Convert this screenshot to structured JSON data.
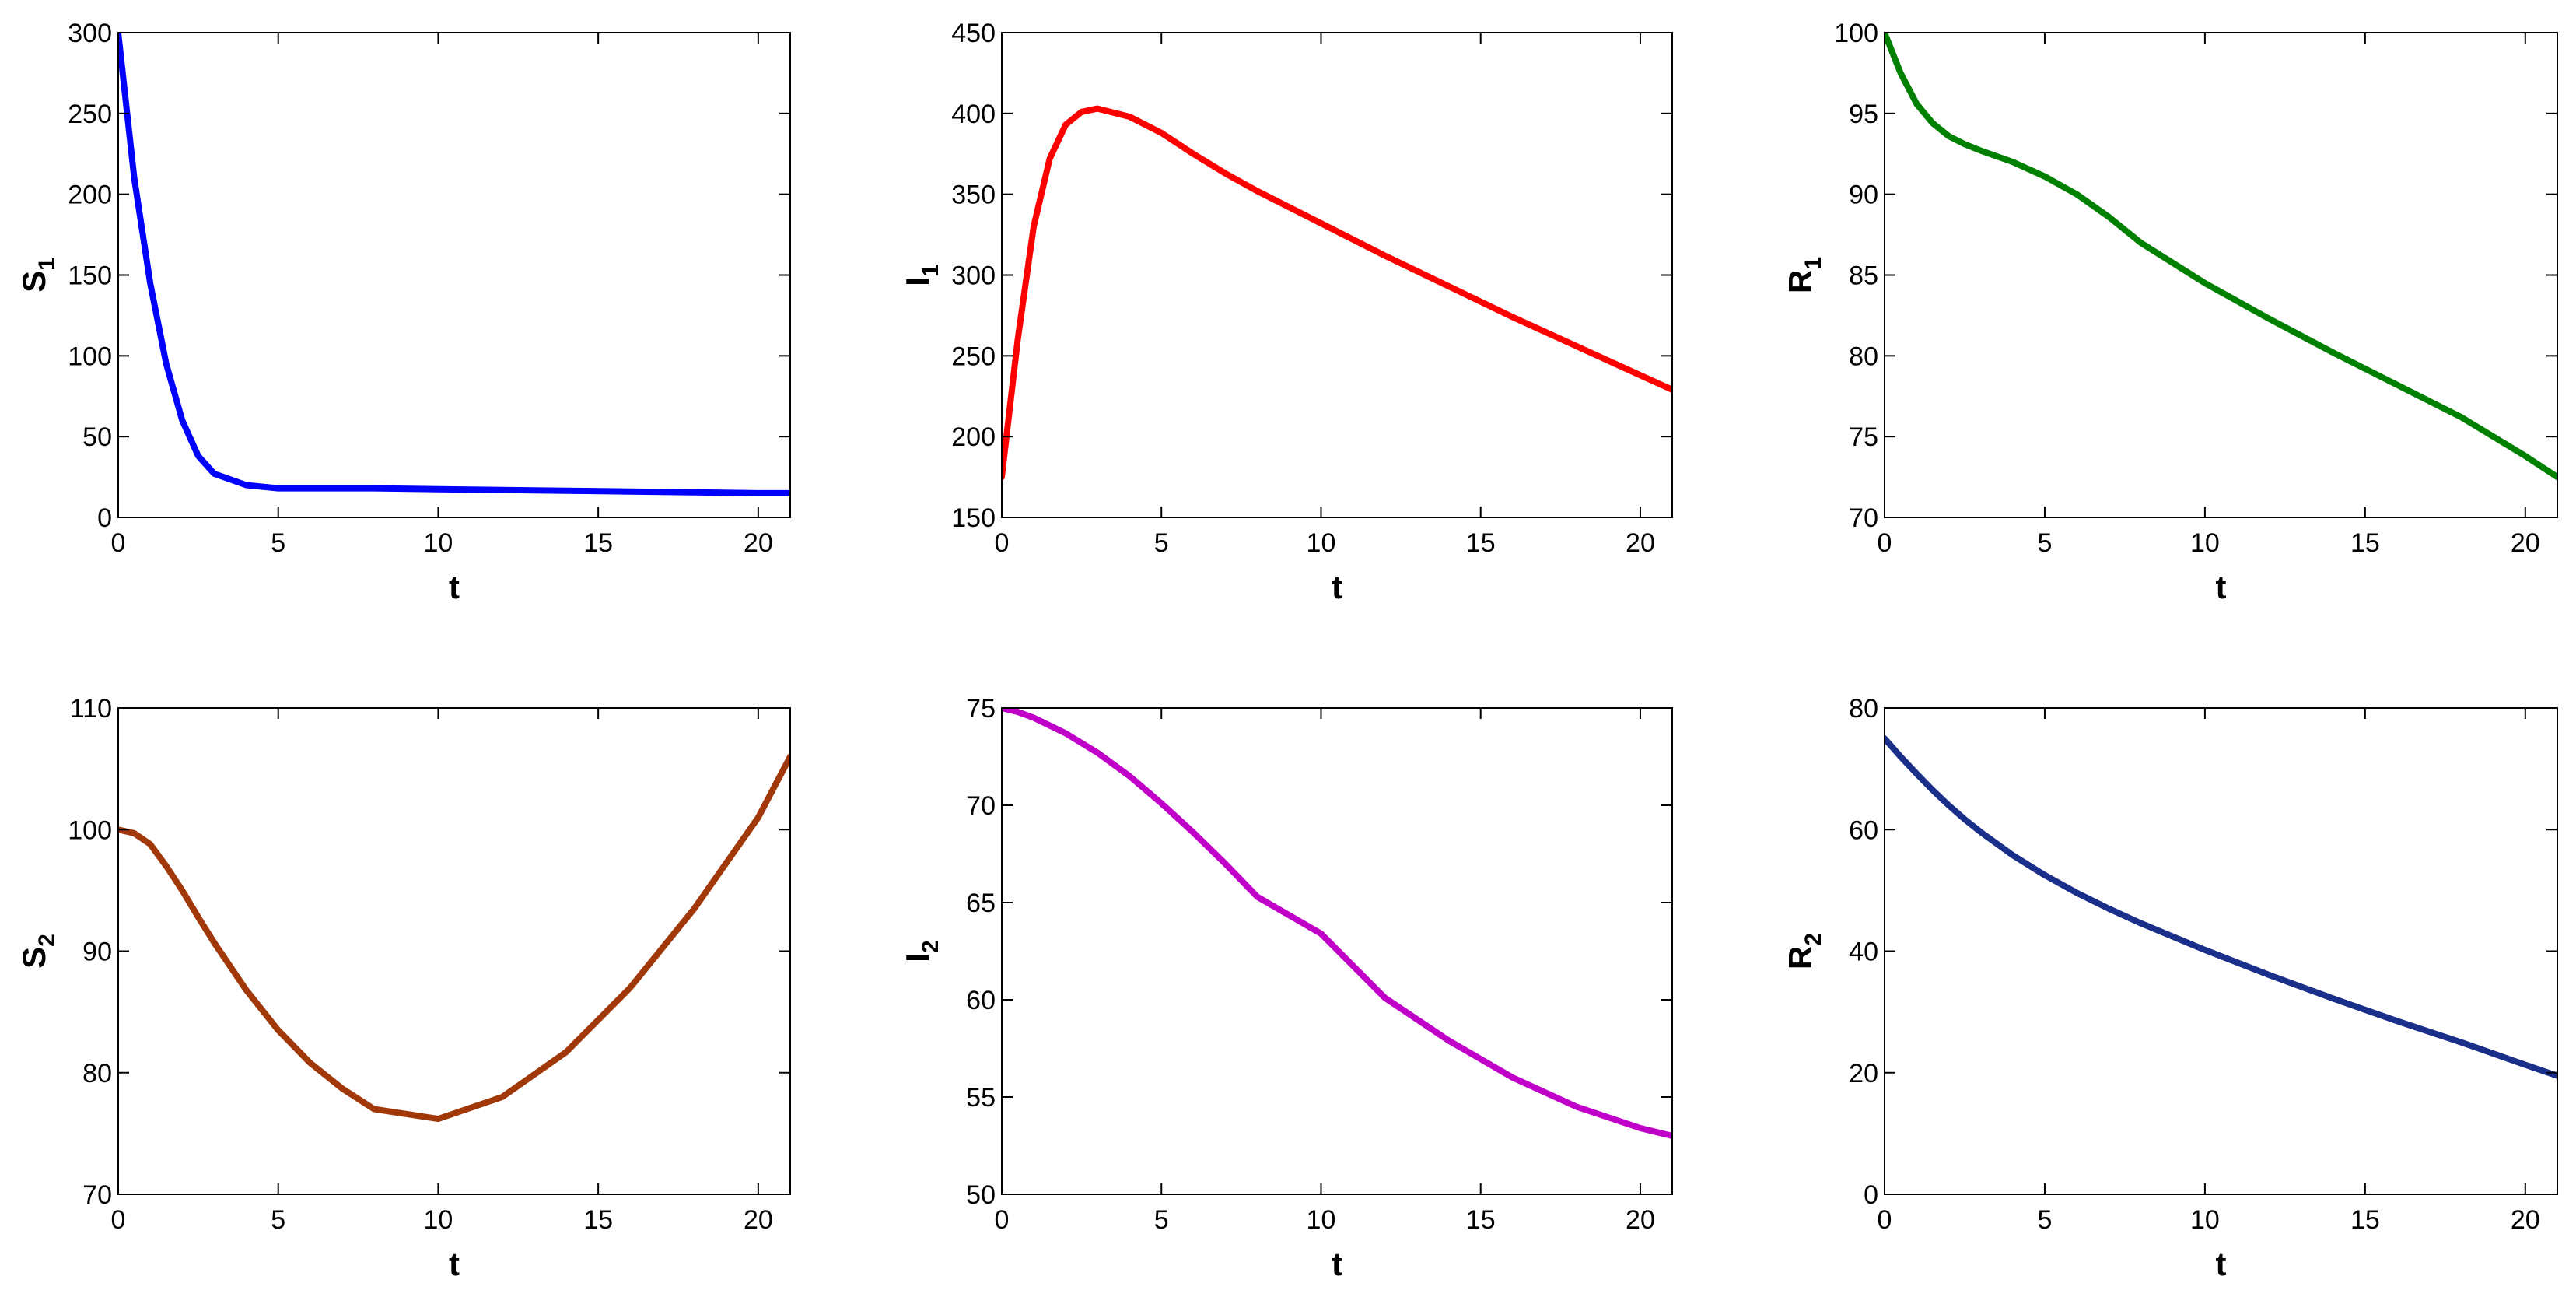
{
  "chart_data": [
    {
      "type": "line",
      "xlabel": "t",
      "ylabel": "S",
      "ylabel_subscript": "1",
      "x": [
        0,
        0.5,
        1,
        1.5,
        2,
        2.5,
        3,
        4,
        5,
        6,
        7,
        8,
        10,
        12,
        14,
        16,
        18,
        20,
        21
      ],
      "series": [
        {
          "color": "#0000ff",
          "values": [
            300,
            210,
            145,
            95,
            60,
            38,
            27,
            20,
            18,
            18,
            18,
            18,
            17.5,
            17,
            16.5,
            16,
            15.5,
            15,
            15
          ]
        }
      ],
      "xlim": [
        0,
        21
      ],
      "xticks": [
        0,
        5,
        10,
        15,
        20
      ],
      "ylim": [
        0,
        300
      ],
      "yticks": [
        0,
        50,
        100,
        150,
        200,
        250,
        300
      ]
    },
    {
      "type": "line",
      "xlabel": "t",
      "ylabel": "I",
      "ylabel_subscript": "1",
      "x": [
        0,
        0.5,
        1,
        1.5,
        2,
        2.5,
        3,
        4,
        5,
        6,
        7,
        8,
        10,
        12,
        14,
        16,
        18,
        20,
        21
      ],
      "series": [
        {
          "color": "#ff0000",
          "values": [
            175,
            260,
            330,
            372,
            393,
            401,
            403,
            398,
            388,
            375,
            363,
            352,
            332,
            312,
            293,
            274,
            256,
            238,
            229
          ]
        }
      ],
      "xlim": [
        0,
        21
      ],
      "xticks": [
        0,
        5,
        10,
        15,
        20
      ],
      "ylim": [
        150,
        450
      ],
      "yticks": [
        150,
        200,
        250,
        300,
        350,
        400,
        450
      ]
    },
    {
      "type": "line",
      "xlabel": "t",
      "ylabel": "R",
      "ylabel_subscript": "1",
      "x": [
        0,
        0.5,
        1,
        1.5,
        2,
        2.5,
        3,
        4,
        5,
        6,
        7,
        8,
        10,
        12,
        14,
        16,
        18,
        20,
        21
      ],
      "series": [
        {
          "color": "#008000",
          "values": [
            100,
            97.5,
            95.6,
            94.4,
            93.6,
            93.1,
            92.7,
            92,
            91.1,
            90,
            88.6,
            87,
            84.5,
            82.3,
            80.2,
            78.2,
            76.2,
            73.8,
            72.5
          ]
        }
      ],
      "xlim": [
        0,
        21
      ],
      "xticks": [
        0,
        5,
        10,
        15,
        20
      ],
      "ylim": [
        70,
        100
      ],
      "yticks": [
        70,
        75,
        80,
        85,
        90,
        95,
        100
      ]
    },
    {
      "type": "line",
      "xlabel": "t",
      "ylabel": "S",
      "ylabel_subscript": "2",
      "x": [
        0,
        0.5,
        1,
        1.5,
        2,
        2.5,
        3,
        4,
        5,
        6,
        7,
        8,
        10,
        12,
        14,
        16,
        18,
        20,
        21
      ],
      "series": [
        {
          "color": "#a0380a",
          "values": [
            100,
            99.7,
            98.8,
            97,
            95,
            92.8,
            90.7,
            86.8,
            83.5,
            80.8,
            78.7,
            77,
            76.2,
            78,
            81.7,
            87,
            93.5,
            101,
            106
          ]
        }
      ],
      "xlim": [
        0,
        21
      ],
      "xticks": [
        0,
        5,
        10,
        15,
        20
      ],
      "ylim": [
        70,
        110
      ],
      "yticks": [
        70,
        80,
        90,
        100,
        110
      ]
    },
    {
      "type": "line",
      "xlabel": "t",
      "ylabel": "I",
      "ylabel_subscript": "2",
      "x": [
        0,
        0.5,
        1,
        1.5,
        2,
        2.5,
        3,
        4,
        5,
        6,
        7,
        8,
        10,
        12,
        14,
        16,
        18,
        20,
        21
      ],
      "series": [
        {
          "color": "#c000c8",
          "values": [
            75,
            74.8,
            74.5,
            74.1,
            73.7,
            73.2,
            72.7,
            71.5,
            70.1,
            68.6,
            67,
            65.3,
            63.4,
            60.1,
            57.9,
            56,
            54.5,
            53.4,
            53
          ]
        }
      ],
      "xlim": [
        0,
        21
      ],
      "xticks": [
        0,
        5,
        10,
        15,
        20
      ],
      "ylim": [
        50,
        75
      ],
      "yticks": [
        50,
        55,
        60,
        65,
        70,
        75
      ]
    },
    {
      "type": "line",
      "xlabel": "t",
      "ylabel": "R",
      "ylabel_subscript": "2",
      "x": [
        0,
        0.5,
        1,
        1.5,
        2,
        2.5,
        3,
        4,
        5,
        6,
        7,
        8,
        10,
        12,
        14,
        16,
        18,
        20,
        21
      ],
      "series": [
        {
          "color": "#1a2f8a",
          "values": [
            75,
            72,
            69.2,
            66.5,
            64,
            61.7,
            59.6,
            55.8,
            52.5,
            49.6,
            47,
            44.6,
            40.2,
            36.1,
            32.2,
            28.5,
            25,
            21.3,
            19.5
          ]
        }
      ],
      "xlim": [
        0,
        21
      ],
      "xticks": [
        0,
        5,
        10,
        15,
        20
      ],
      "ylim": [
        0,
        80
      ],
      "yticks": [
        0,
        20,
        40,
        60,
        80
      ]
    }
  ]
}
